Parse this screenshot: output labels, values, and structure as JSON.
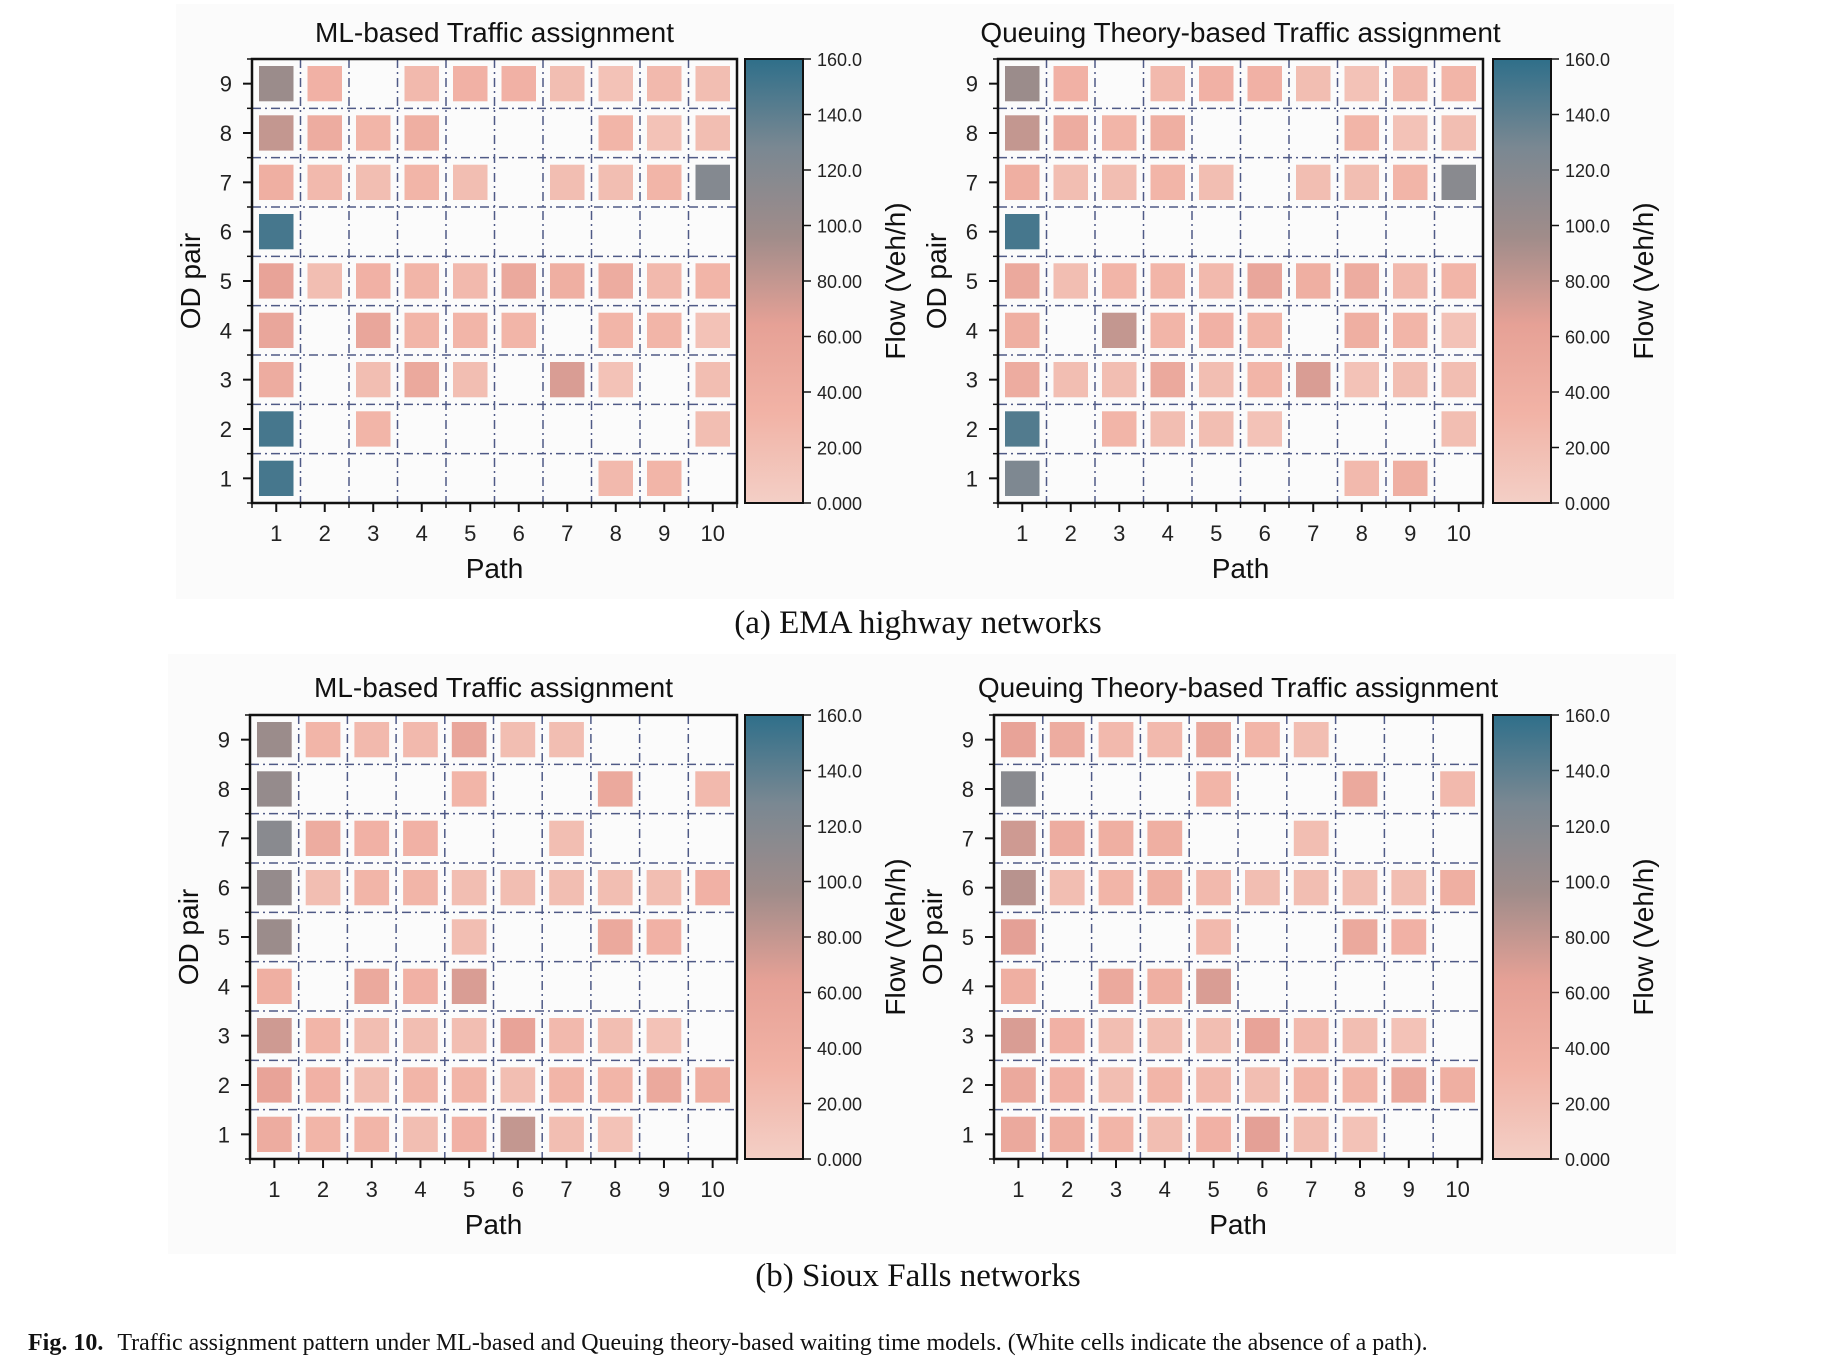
{
  "figure": {
    "subcaption_a": "(a) EMA highway networks",
    "subcaption_b": "(b) Sioux Falls networks",
    "caption_label": "Fig. 10.",
    "caption_text": "Traffic assignment pattern under ML-based and Queuing theory-based waiting time models. (White cells indicate the absence of a path)."
  },
  "colorbar": {
    "label": "Flow (Veh/h)",
    "ticks": [
      "160.0",
      "140.0",
      "120.0",
      "100.0",
      "80.00",
      "60.00",
      "40.00",
      "20.00",
      "0.000"
    ],
    "range": [
      0,
      160
    ],
    "colors": [
      "#f3cfc6",
      "#f2b3a6",
      "#e6a196",
      "#a08c8a",
      "#7a8892",
      "#2f6f8a"
    ]
  },
  "chart_data": [
    {
      "type": "heatmap",
      "title": "ML-based Traffic assignment",
      "xlabel": "Path",
      "ylabel": "OD pair",
      "x": [
        1,
        2,
        3,
        4,
        5,
        6,
        7,
        8,
        9,
        10
      ],
      "y": [
        1,
        2,
        3,
        4,
        5,
        6,
        7,
        8,
        9
      ],
      "values": [
        [
          150,
          null,
          null,
          null,
          null,
          null,
          null,
          25,
          30,
          null
        ],
        [
          150,
          null,
          30,
          null,
          null,
          null,
          null,
          null,
          null,
          20
        ],
        [
          45,
          null,
          20,
          50,
          20,
          null,
          70,
          15,
          null,
          20
        ],
        [
          55,
          null,
          55,
          30,
          30,
          30,
          null,
          30,
          30,
          15
        ],
        [
          60,
          20,
          35,
          30,
          25,
          50,
          40,
          45,
          25,
          30
        ],
        [
          150,
          null,
          null,
          null,
          null,
          null,
          null,
          null,
          null,
          null
        ],
        [
          40,
          25,
          20,
          30,
          20,
          null,
          20,
          20,
          30,
          120
        ],
        [
          80,
          45,
          30,
          40,
          null,
          null,
          null,
          30,
          15,
          20
        ],
        [
          100,
          35,
          null,
          25,
          35,
          35,
          20,
          15,
          25,
          20
        ]
      ]
    },
    {
      "type": "heatmap",
      "title": "Queuing Theory-based Traffic assignment",
      "xlabel": "Path",
      "ylabel": "OD pair",
      "x": [
        1,
        2,
        3,
        4,
        5,
        6,
        7,
        8,
        9,
        10
      ],
      "y": [
        1,
        2,
        3,
        4,
        5,
        6,
        7,
        8,
        9
      ],
      "values": [
        [
          125,
          null,
          null,
          null,
          null,
          null,
          null,
          25,
          40,
          null
        ],
        [
          145,
          null,
          30,
          20,
          20,
          15,
          null,
          null,
          null,
          20
        ],
        [
          45,
          20,
          20,
          50,
          20,
          30,
          70,
          15,
          20,
          20
        ],
        [
          40,
          null,
          80,
          30,
          35,
          30,
          null,
          40,
          30,
          15
        ],
        [
          50,
          20,
          30,
          30,
          25,
          55,
          40,
          45,
          25,
          30
        ],
        [
          150,
          null,
          null,
          null,
          null,
          null,
          null,
          null,
          null,
          null
        ],
        [
          40,
          20,
          20,
          30,
          20,
          null,
          20,
          20,
          30,
          115
        ],
        [
          80,
          45,
          30,
          40,
          null,
          null,
          null,
          30,
          15,
          20
        ],
        [
          100,
          35,
          null,
          25,
          35,
          35,
          20,
          15,
          25,
          30
        ]
      ]
    },
    {
      "type": "heatmap",
      "title": "ML-based Traffic assignment",
      "xlabel": "Path",
      "ylabel": "OD pair",
      "x": [
        1,
        2,
        3,
        4,
        5,
        6,
        7,
        8,
        9,
        10
      ],
      "y": [
        1,
        2,
        3,
        4,
        5,
        6,
        7,
        8,
        9
      ],
      "values": [
        [
          45,
          30,
          30,
          20,
          35,
          80,
          20,
          15,
          null,
          null
        ],
        [
          60,
          35,
          20,
          30,
          30,
          20,
          30,
          30,
          50,
          40
        ],
        [
          75,
          30,
          20,
          20,
          20,
          60,
          25,
          20,
          15,
          null
        ],
        [
          40,
          null,
          50,
          35,
          70,
          null,
          null,
          null,
          null,
          null
        ],
        [
          100,
          null,
          null,
          null,
          20,
          null,
          null,
          50,
          35,
          null
        ],
        [
          105,
          20,
          30,
          30,
          20,
          20,
          20,
          20,
          20,
          35
        ],
        [
          115,
          45,
          35,
          35,
          null,
          null,
          20,
          null,
          null,
          null
        ],
        [
          105,
          null,
          null,
          null,
          30,
          null,
          null,
          50,
          null,
          25
        ],
        [
          100,
          30,
          25,
          25,
          55,
          20,
          20,
          null,
          null,
          null
        ]
      ]
    },
    {
      "type": "heatmap",
      "title": "Queuing Theory-based Traffic assignment",
      "xlabel": "Path",
      "ylabel": "OD pair",
      "x": [
        1,
        2,
        3,
        4,
        5,
        6,
        7,
        8,
        9,
        10
      ],
      "y": [
        1,
        2,
        3,
        4,
        5,
        6,
        7,
        8,
        9
      ],
      "values": [
        [
          50,
          40,
          30,
          20,
          35,
          65,
          20,
          15,
          null,
          null
        ],
        [
          50,
          35,
          20,
          30,
          25,
          20,
          30,
          30,
          50,
          40
        ],
        [
          70,
          35,
          20,
          20,
          20,
          60,
          25,
          20,
          15,
          null
        ],
        [
          40,
          null,
          50,
          40,
          70,
          null,
          null,
          null,
          null,
          null
        ],
        [
          65,
          null,
          null,
          null,
          25,
          null,
          null,
          50,
          35,
          null
        ],
        [
          85,
          20,
          30,
          40,
          25,
          20,
          20,
          20,
          20,
          40
        ],
        [
          75,
          45,
          40,
          40,
          null,
          null,
          20,
          null,
          null,
          null
        ],
        [
          115,
          null,
          null,
          null,
          30,
          null,
          null,
          50,
          null,
          25
        ],
        [
          60,
          45,
          25,
          25,
          50,
          30,
          20,
          null,
          null,
          null
        ]
      ]
    }
  ]
}
